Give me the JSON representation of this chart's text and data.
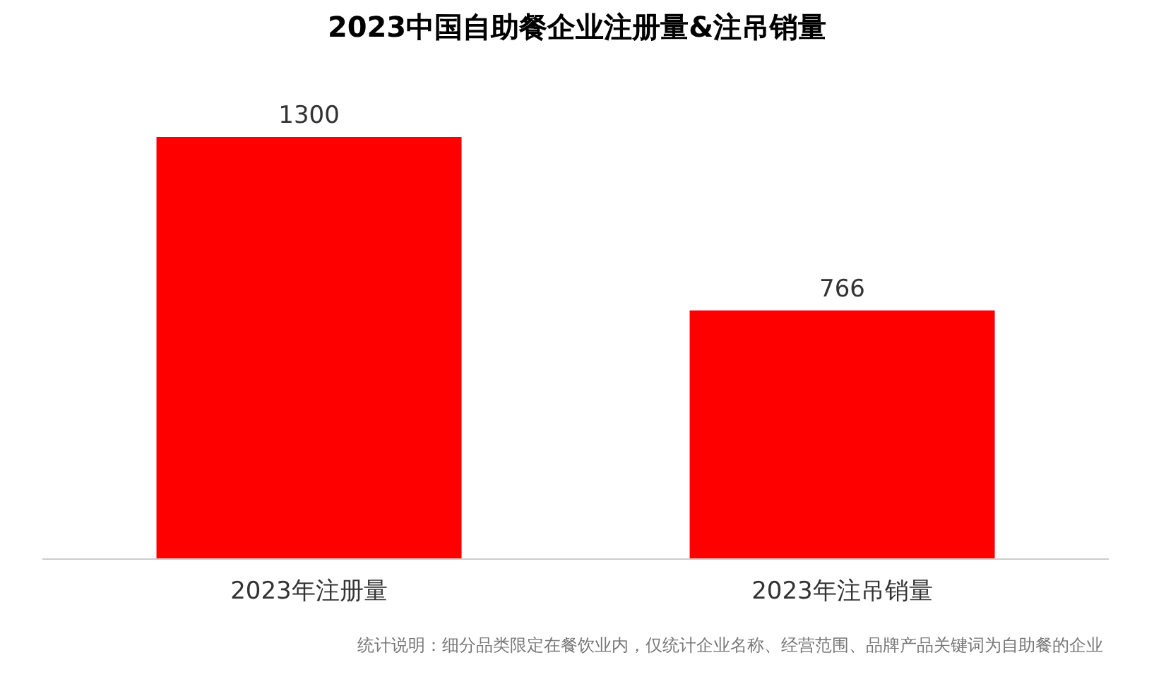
{
  "chart_data": {
    "type": "bar",
    "title": "2023中国自助餐企业注册量&注吊销量",
    "categories": [
      "2023年注册量",
      "2023年注吊销量"
    ],
    "values": [
      1300,
      766
    ],
    "color": "#ff0000",
    "data_labels": true,
    "grid": false,
    "legend": false,
    "annotations": [
      "统计说明：细分品类限定在餐饮业内，仅统计企业名称、经营范围、品牌产品关键词为自助餐的企业"
    ]
  }
}
